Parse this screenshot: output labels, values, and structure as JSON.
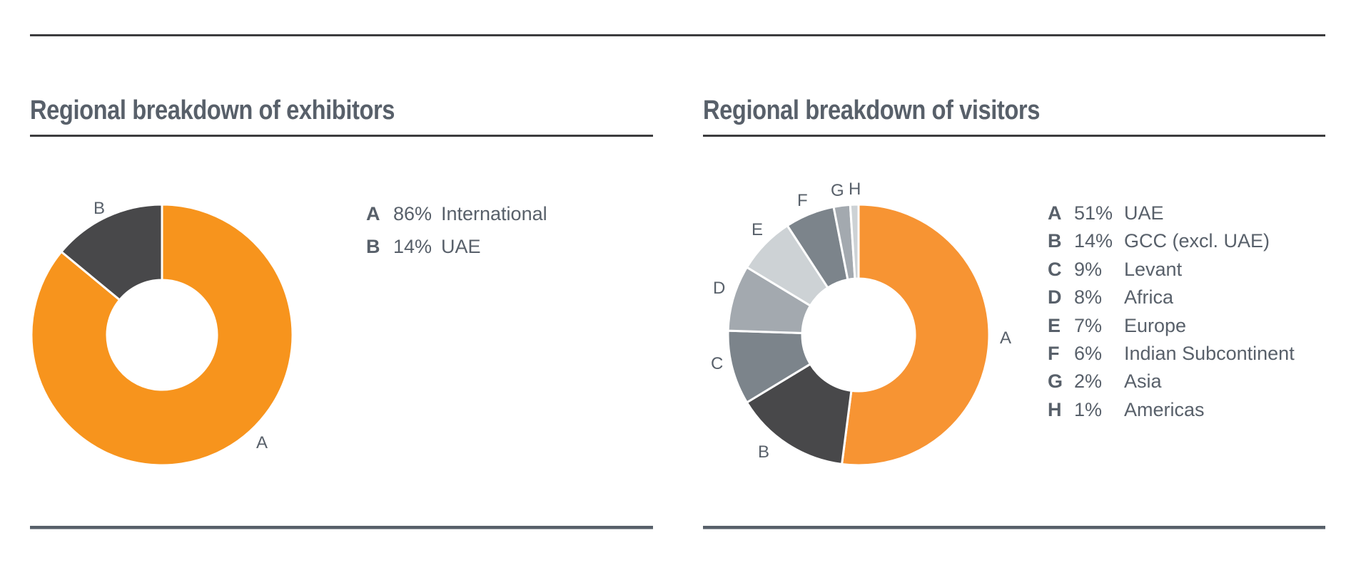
{
  "panels": [
    {
      "title": "Regional breakdown of exhibitors",
      "legend": [
        {
          "key": "A",
          "pct": "86%",
          "label": "International"
        },
        {
          "key": "B",
          "pct": "14%",
          "label": "UAE"
        }
      ]
    },
    {
      "title": "Regional breakdown of visitors",
      "legend": [
        {
          "key": "A",
          "pct": "51%",
          "label": "UAE"
        },
        {
          "key": "B",
          "pct": "14%",
          "label": "GCC (excl. UAE)"
        },
        {
          "key": "C",
          "pct": "9%",
          "label": "Levant"
        },
        {
          "key": "D",
          "pct": "8%",
          "label": "Africa"
        },
        {
          "key": "E",
          "pct": "7%",
          "label": "Europe"
        },
        {
          "key": "F",
          "pct": "6%",
          "label": "Indian Subcontinent"
        },
        {
          "key": "G",
          "pct": "2%",
          "label": "Asia"
        },
        {
          "key": "H",
          "pct": "1%",
          "label": "Americas"
        }
      ]
    }
  ],
  "chart_data": [
    {
      "type": "pie",
      "variant": "donut",
      "title": "Regional breakdown of exhibitors",
      "categories": [
        "A",
        "B"
      ],
      "labels": [
        "International",
        "UAE"
      ],
      "values": [
        86,
        14
      ],
      "unit": "%",
      "colors": [
        "#f7941d",
        "#48484a"
      ],
      "start_angle": "12 o'clock, clockwise",
      "legend_position": "right"
    },
    {
      "type": "pie",
      "variant": "donut",
      "title": "Regional breakdown of visitors",
      "categories": [
        "A",
        "B",
        "C",
        "D",
        "E",
        "F",
        "G",
        "H"
      ],
      "labels": [
        "UAE",
        "GCC (excl. UAE)",
        "Levant",
        "Africa",
        "Europe",
        "Indian Subcontinent",
        "Asia",
        "Americas"
      ],
      "values": [
        51,
        14,
        9,
        8,
        7,
        6,
        2,
        1
      ],
      "unit": "%",
      "colors": [
        "#f79433",
        "#48484a",
        "#7c848b",
        "#a3a9af",
        "#cdd2d5",
        "#7c848b",
        "#a3a9af",
        "#cdd2d5"
      ],
      "start_angle": "12 o'clock, clockwise",
      "legend_position": "right"
    }
  ]
}
